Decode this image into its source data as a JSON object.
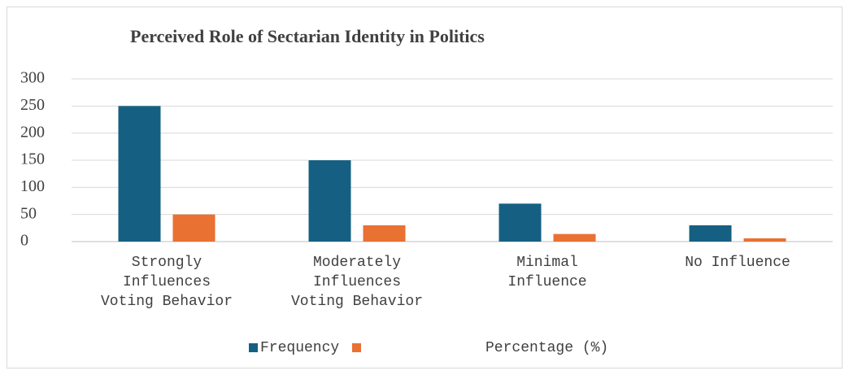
{
  "chart_data": {
    "type": "bar",
    "title": "Perceived Role of Sectarian Identity in Politics",
    "categories": [
      "Strongly Influences Voting Behavior",
      "Moderately Influences Voting Behavior",
      "Minimal Influence",
      "No Influence"
    ],
    "series": [
      {
        "name": "Frequency",
        "color": "#156082",
        "values": [
          250,
          150,
          70,
          30
        ]
      },
      {
        "name": "Percentage (%)",
        "color": "#e97132",
        "values": [
          50,
          30,
          14,
          6
        ]
      }
    ],
    "ylim": [
      0,
      300
    ],
    "yticks": [
      0,
      50,
      100,
      150,
      200,
      250,
      300
    ],
    "grid": true,
    "legend": "bottom"
  }
}
